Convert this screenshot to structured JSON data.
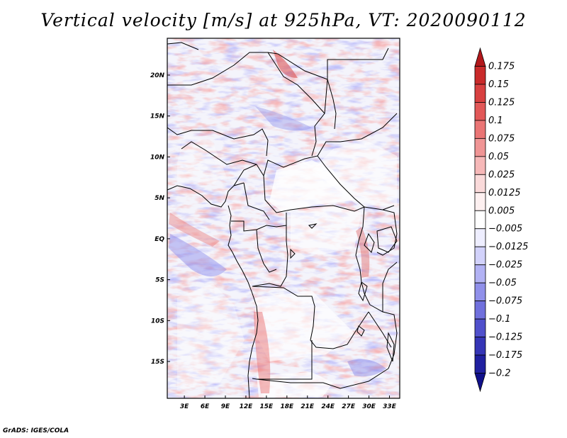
{
  "title": "Vertical velocity [m/s] at 925hPa, VT: 2020090112",
  "credit": "GrADS: IGES/COLA",
  "map": {
    "lon_labels": [
      "3E",
      "6E",
      "9E",
      "12E",
      "15E",
      "18E",
      "21E",
      "24E",
      "27E",
      "30E",
      "33E"
    ],
    "lon_values": [
      3,
      6,
      9,
      12,
      15,
      18,
      21,
      24,
      27,
      30,
      33
    ],
    "lat_labels": [
      "20N",
      "15N",
      "10N",
      "5N",
      "EQ",
      "5S",
      "10S",
      "15S"
    ],
    "lat_values": [
      20,
      15,
      10,
      5,
      0,
      -5,
      -10,
      -15
    ],
    "lon_range": [
      0.5,
      34.5
    ],
    "lat_range": [
      -19.5,
      24.5
    ]
  },
  "colorbar": {
    "labels": [
      "0.175",
      "0.15",
      "0.125",
      "0.1",
      "0.075",
      "0.05",
      "0.025",
      "0.0125",
      "0.005",
      "−0.005",
      "−0.0125",
      "−0.025",
      "−0.05",
      "−0.075",
      "−0.1",
      "−0.125",
      "−0.175",
      "−0.2"
    ],
    "colors": [
      "#b2181b",
      "#c92a2a",
      "#d84040",
      "#e25858",
      "#ea7575",
      "#f09595",
      "#f6b8b8",
      "#fadada",
      "#fdf0f0",
      "#ffffff",
      "#eeeeff",
      "#d2d2fb",
      "#b2b2f4",
      "#9090ea",
      "#7070dd",
      "#5050cc",
      "#3535b6",
      "#2020a0",
      "#10108a"
    ]
  }
}
